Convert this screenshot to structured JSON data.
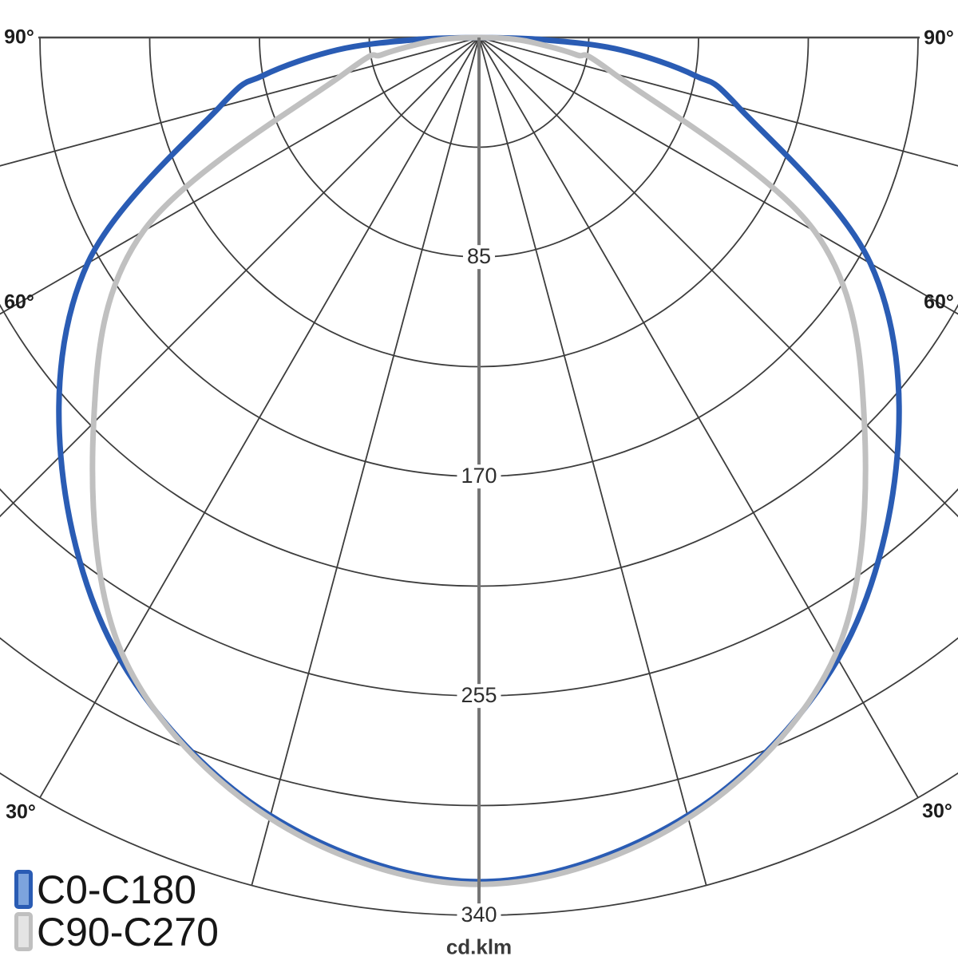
{
  "chart_data": {
    "type": "polar_photometric",
    "unit_label": "cd.klm",
    "radial_ticks": [
      "85",
      "170",
      "255",
      "340"
    ],
    "radial_minor_step": 42.5,
    "radial_max": 340,
    "ray_step_deg": 15,
    "angle_axis": {
      "left": [
        "90°",
        "60°",
        "30°"
      ],
      "right": [
        "90°",
        "60°",
        "30°"
      ]
    },
    "series": [
      {
        "name": "C0-C180",
        "color": "#2a5cb4",
        "swatch_fill": "#7da4dd",
        "angles_deg": [
          0,
          15,
          30,
          45,
          60,
          75,
          80,
          85,
          88,
          90
        ],
        "values_cd_klm": [
          327,
          312,
          278,
          229,
          175,
          104,
          85,
          55,
          25,
          0
        ]
      },
      {
        "name": "C90-C270",
        "color": "#c0c0c0",
        "swatch_fill": "#e4e4e4",
        "angles_deg": [
          0,
          15,
          30,
          45,
          60,
          75,
          80,
          85,
          88,
          90
        ],
        "values_cd_klm": [
          328,
          313,
          276,
          211,
          150,
          54,
          38,
          20,
          10,
          0
        ]
      }
    ],
    "grid_color": "#3d3d3d",
    "axis_line_color": "#4a4a4a",
    "center_line_color": "#757575"
  },
  "legend": {
    "items": [
      {
        "label": "C0-C180"
      },
      {
        "label": "C90-C270"
      }
    ]
  }
}
